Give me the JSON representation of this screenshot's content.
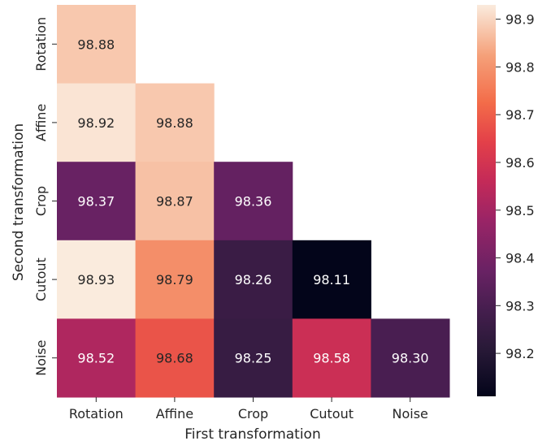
{
  "chart_data": {
    "type": "heatmap",
    "title": "",
    "xlabel": "First transformation",
    "ylabel": "Second transformation",
    "x_categories": [
      "Rotation",
      "Affine",
      "Crop",
      "Cutout",
      "Noise"
    ],
    "y_categories": [
      "Rotation",
      "Affine",
      "Crop",
      "Cutout",
      "Noise"
    ],
    "values": [
      [
        98.88,
        null,
        null,
        null,
        null
      ],
      [
        98.92,
        98.88,
        null,
        null,
        null
      ],
      [
        98.37,
        98.87,
        98.36,
        null,
        null
      ],
      [
        98.93,
        98.79,
        98.26,
        98.11,
        null
      ],
      [
        98.52,
        98.68,
        98.25,
        98.58,
        98.3
      ]
    ],
    "value_labels": [
      [
        "98.88",
        null,
        null,
        null,
        null
      ],
      [
        "98.92",
        "98.88",
        null,
        null,
        null
      ],
      [
        "98.37",
        "98.87",
        "98.36",
        null,
        null
      ],
      [
        "98.93",
        "98.79",
        "98.26",
        "98.11",
        null
      ],
      [
        "98.52",
        "98.68",
        "98.25",
        "98.58",
        "98.30"
      ]
    ],
    "colorbar": {
      "min": 98.11,
      "max": 98.93,
      "ticks": [
        "98.2",
        "98.3",
        "98.4",
        "98.5",
        "98.6",
        "98.7",
        "98.8",
        "98.9"
      ]
    },
    "colormap": "rocket"
  }
}
